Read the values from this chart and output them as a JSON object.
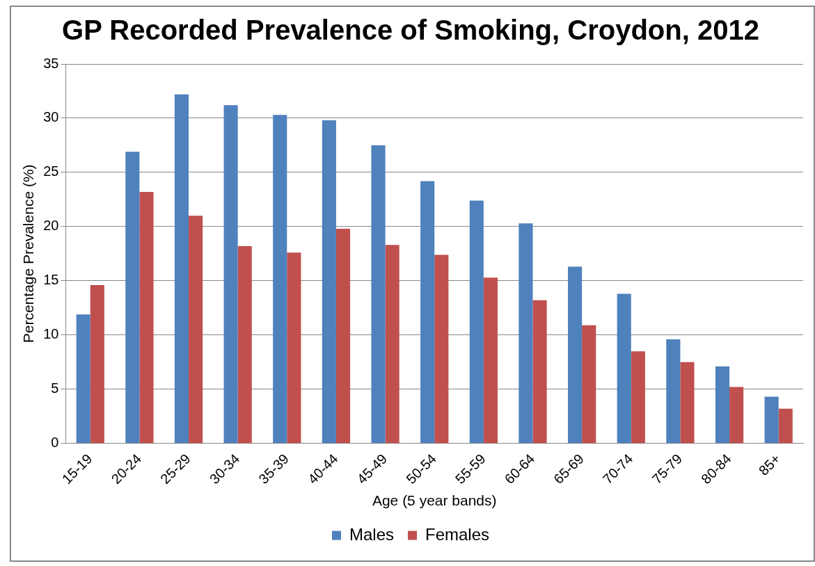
{
  "chart_data": {
    "type": "bar",
    "title": "GP Recorded Prevalence of Smoking, Croydon, 2012",
    "xlabel": "Age (5 year bands)",
    "ylabel": "Percentage Prevalence (%)",
    "categories": [
      "15-19",
      "20-24",
      "25-29",
      "30-34",
      "35-39",
      "40-44",
      "45-49",
      "50-54",
      "55-59",
      "60-64",
      "65-69",
      "70-74",
      "75-79",
      "80-84",
      "85+"
    ],
    "series": [
      {
        "name": "Males",
        "color": "#4f81bd",
        "values": [
          11.9,
          26.9,
          32.2,
          31.2,
          30.3,
          29.8,
          27.5,
          24.2,
          22.4,
          20.3,
          16.3,
          13.8,
          9.6,
          7.1,
          4.3
        ]
      },
      {
        "name": "Females",
        "color": "#c0504d",
        "values": [
          14.6,
          23.2,
          21.0,
          18.2,
          17.6,
          19.8,
          18.3,
          17.4,
          15.3,
          13.2,
          10.9,
          8.5,
          7.5,
          5.2,
          3.2
        ]
      }
    ],
    "ylim": [
      0,
      35
    ],
    "yticks": [
      0,
      5,
      10,
      15,
      20,
      25,
      30,
      35
    ],
    "grid": "y",
    "legend": "bottom"
  }
}
